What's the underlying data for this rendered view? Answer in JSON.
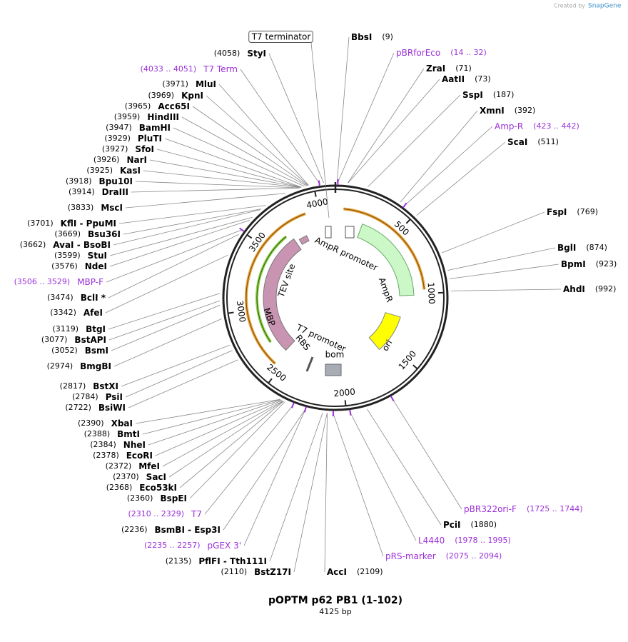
{
  "header": {
    "credit": "Created by",
    "brand": "SnapGene"
  },
  "map": {
    "title": "pOPTM p62 PB1 (1-102)",
    "length": "4125 bp",
    "ticks": [
      500,
      1000,
      1500,
      2000,
      2500,
      3000,
      3500,
      4000
    ],
    "features": [
      "T7 terminator",
      "AmpR promoter",
      "AmpR",
      "ori",
      "bom",
      "T7 promoter",
      "RBS",
      "MBP",
      "TEV site"
    ],
    "right_labels": [
      {
        "name": "BbsI",
        "loc": "(9)",
        "color": "#000000"
      },
      {
        "name": "pBRforEco",
        "loc": "(14 .. 32)",
        "color": "#9b30d9"
      },
      {
        "name": "ZraI",
        "loc": "(71)",
        "color": "#000000"
      },
      {
        "name": "AatII",
        "loc": "(73)",
        "color": "#000000"
      },
      {
        "name": "SspI",
        "loc": "(187)",
        "color": "#000000"
      },
      {
        "name": "XmnI",
        "loc": "(392)",
        "color": "#000000"
      },
      {
        "name": "Amp-R",
        "loc": "(423 .. 442)",
        "color": "#9b30d9"
      },
      {
        "name": "ScaI",
        "loc": "(511)",
        "color": "#000000"
      },
      {
        "name": "FspI",
        "loc": "(769)",
        "color": "#000000"
      },
      {
        "name": "BglI",
        "loc": "(874)",
        "color": "#000000"
      },
      {
        "name": "BpmI",
        "loc": "(923)",
        "color": "#000000"
      },
      {
        "name": "AhdI",
        "loc": "(992)",
        "color": "#000000"
      },
      {
        "name": "pBR322ori-F",
        "loc": "(1725 .. 1744)",
        "color": "#9b30d9"
      },
      {
        "name": "PciI",
        "loc": "(1880)",
        "color": "#000000"
      },
      {
        "name": "L4440",
        "loc": "(1978 .. 1995)",
        "color": "#9b30d9"
      },
      {
        "name": "pRS-marker",
        "loc": "(2075 .. 2094)",
        "color": "#9b30d9"
      },
      {
        "name": "AccI",
        "loc": "(2109)",
        "color": "#000000"
      }
    ],
    "left_labels": [
      {
        "name": "StyI",
        "loc": "(4058)",
        "color": "#000000"
      },
      {
        "name": "T7 Term",
        "loc": "(4033 .. 4051)",
        "color": "#9b30d9"
      },
      {
        "name": "MluI",
        "loc": "(3971)",
        "color": "#000000"
      },
      {
        "name": "KpnI",
        "loc": "(3969)",
        "color": "#000000"
      },
      {
        "name": "Acc65I",
        "loc": "(3965)",
        "color": "#000000"
      },
      {
        "name": "HindIII",
        "loc": "(3959)",
        "color": "#000000"
      },
      {
        "name": "BamHI",
        "loc": "(3947)",
        "color": "#000000"
      },
      {
        "name": "PluTI",
        "loc": "(3929)",
        "color": "#000000"
      },
      {
        "name": "SfoI",
        "loc": "(3927)",
        "color": "#000000"
      },
      {
        "name": "NarI",
        "loc": "(3926)",
        "color": "#000000"
      },
      {
        "name": "KasI",
        "loc": "(3925)",
        "color": "#000000"
      },
      {
        "name": "Bpu10I",
        "loc": "(3918)",
        "color": "#000000"
      },
      {
        "name": "DraIII",
        "loc": "(3914)",
        "color": "#000000"
      },
      {
        "name": "MscI",
        "loc": "(3833)",
        "color": "#000000"
      },
      {
        "name": "KflI  - PpuMI",
        "loc": "(3701)",
        "color": "#000000"
      },
      {
        "name": "Bsu36I",
        "loc": "(3669)",
        "color": "#000000"
      },
      {
        "name": "AvaI  - BsoBI",
        "loc": "(3662)",
        "color": "#000000"
      },
      {
        "name": "StuI",
        "loc": "(3599)",
        "color": "#000000"
      },
      {
        "name": "NdeI",
        "loc": "(3576)",
        "color": "#000000"
      },
      {
        "name": "MBP-F",
        "loc": "(3506 .. 3529)",
        "color": "#9b30d9"
      },
      {
        "name": "BclI *",
        "loc": "(3474)",
        "color": "#000000"
      },
      {
        "name": "AfeI",
        "loc": "(3342)",
        "color": "#000000"
      },
      {
        "name": "BtgI",
        "loc": "(3119)",
        "color": "#000000"
      },
      {
        "name": "BstAPI",
        "loc": "(3077)",
        "color": "#000000"
      },
      {
        "name": "BsmI",
        "loc": "(3052)",
        "color": "#000000"
      },
      {
        "name": "BmgBI",
        "loc": "(2974)",
        "color": "#000000"
      },
      {
        "name": "BstXI",
        "loc": "(2817)",
        "color": "#000000"
      },
      {
        "name": "PsiI",
        "loc": "(2784)",
        "color": "#000000"
      },
      {
        "name": "BsiWI",
        "loc": "(2722)",
        "color": "#000000"
      },
      {
        "name": "XbaI",
        "loc": "(2390)",
        "color": "#000000"
      },
      {
        "name": "BmtI",
        "loc": "(2388)",
        "color": "#000000"
      },
      {
        "name": "NheI",
        "loc": "(2384)",
        "color": "#000000"
      },
      {
        "name": "EcoRI",
        "loc": "(2378)",
        "color": "#000000"
      },
      {
        "name": "MfeI",
        "loc": "(2372)",
        "color": "#000000"
      },
      {
        "name": "SacI",
        "loc": "(2370)",
        "color": "#000000"
      },
      {
        "name": "Eco53kI",
        "loc": "(2368)",
        "color": "#000000"
      },
      {
        "name": "BspEI",
        "loc": "(2360)",
        "color": "#000000"
      },
      {
        "name": "T7",
        "loc": "(2310 .. 2329)",
        "color": "#9b30d9"
      },
      {
        "name": "BsmBI  - Esp3I",
        "loc": "(2236)",
        "color": "#000000"
      },
      {
        "name": "pGEX 3'",
        "loc": "(2235 .. 2257)",
        "color": "#9b30d9"
      },
      {
        "name": "PflFI  - Tth111I",
        "loc": "(2135)",
        "color": "#000000"
      },
      {
        "name": "BstZ17I",
        "loc": "(2110)",
        "color": "#000000"
      }
    ]
  }
}
